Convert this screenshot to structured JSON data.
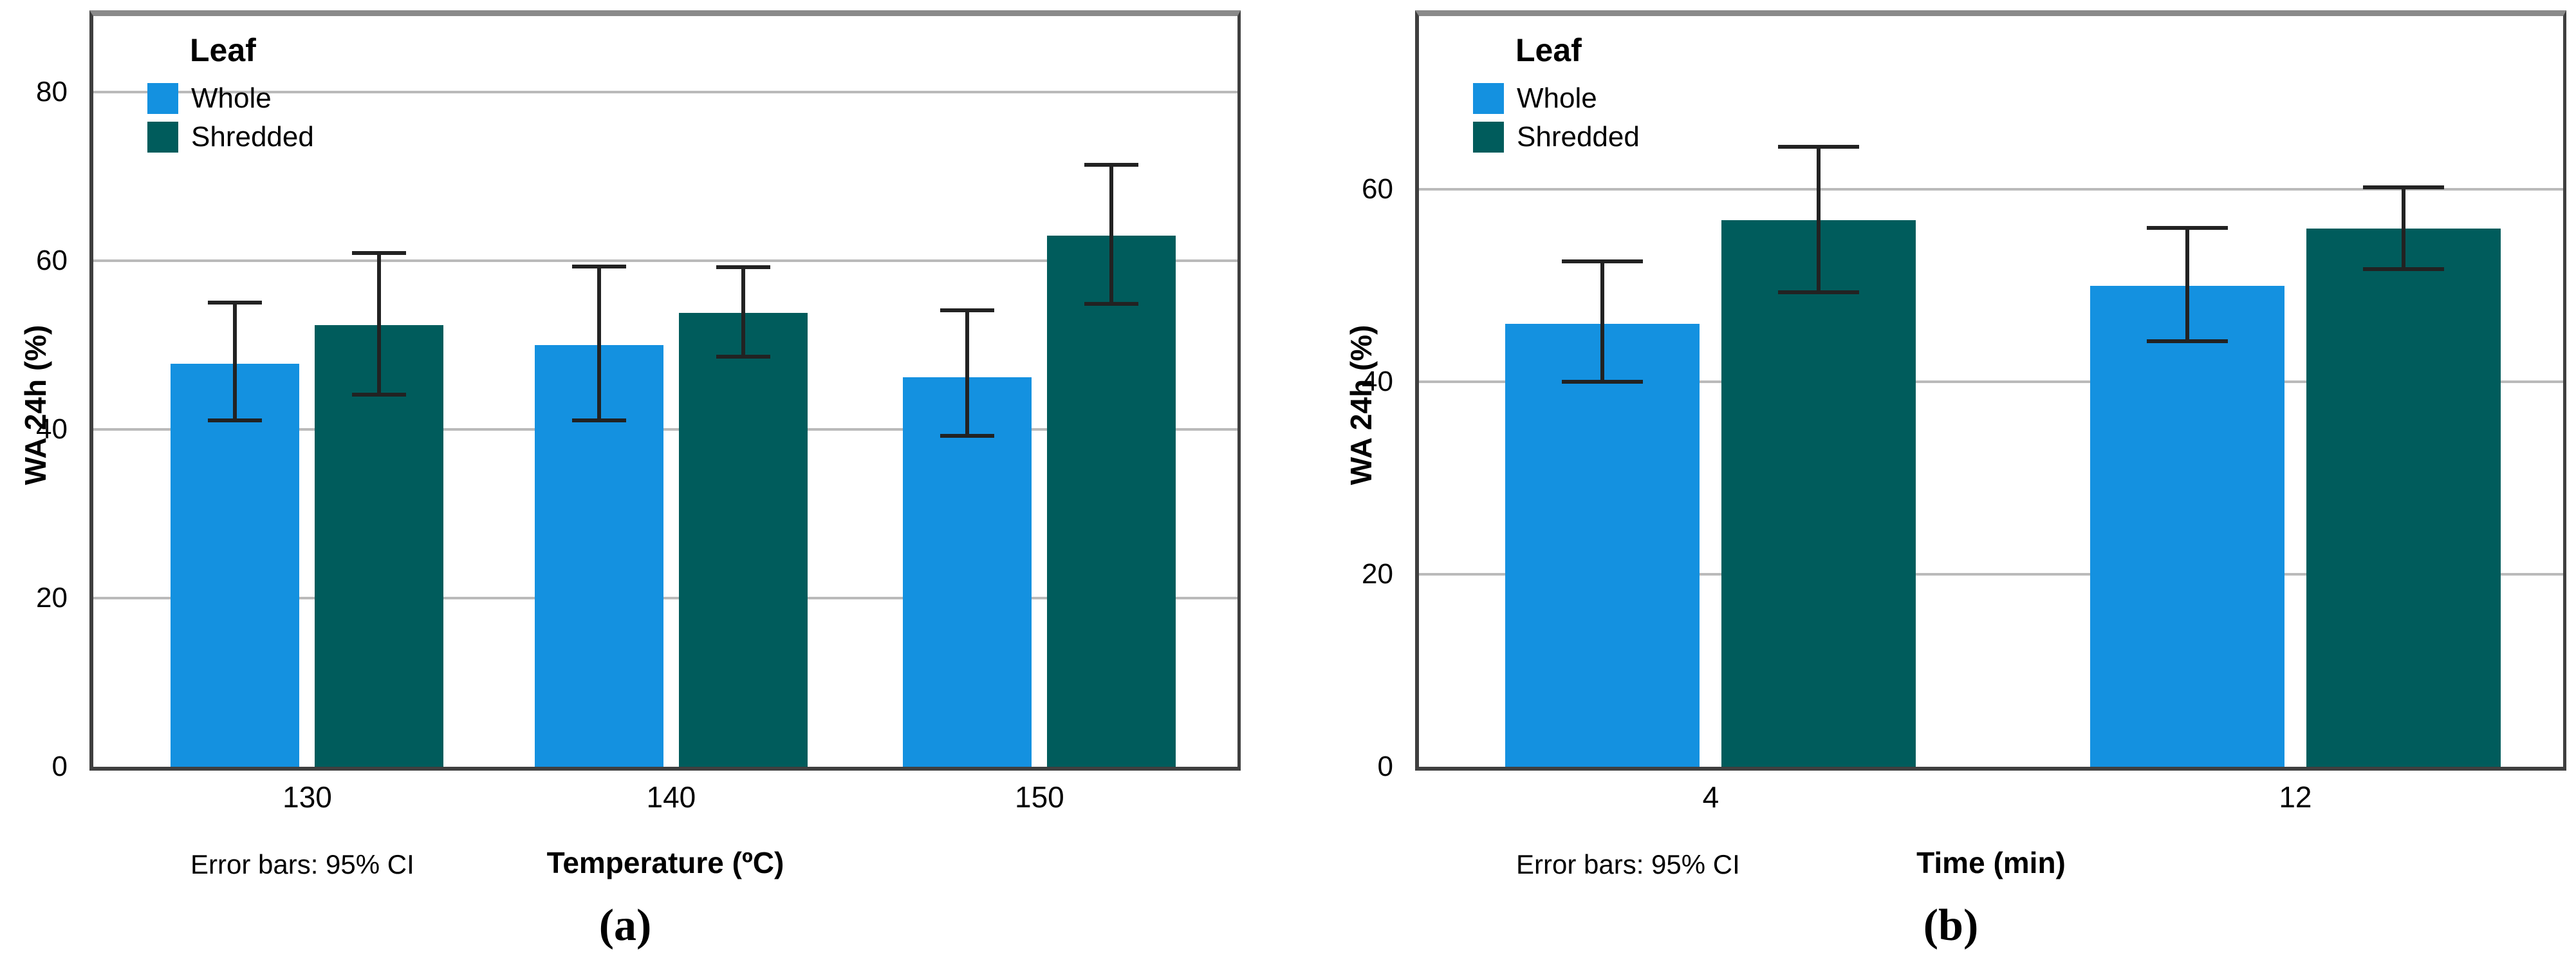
{
  "palette": {
    "whole": "#1491E0",
    "shredded": "#005C5C",
    "grid": "#BABABA",
    "axis": "#3F3F3F",
    "frame_top": "#8A8A8A",
    "error": "#222222",
    "background": "#FFFFFF",
    "text": "#000000"
  },
  "chart_data": [
    {
      "type": "bar",
      "caption": "(a)",
      "legend_title": "Leaf",
      "legend_position": "top-left-inside",
      "grid": "horizontal",
      "categories": [
        "130",
        "140",
        "150"
      ],
      "series": [
        {
          "name": "Whole",
          "color": "#1491E0",
          "values": [
            47.8,
            50.0,
            46.2
          ],
          "ci_low": [
            41.1,
            41.1,
            39.2
          ],
          "ci_high": [
            55.0,
            59.3,
            54.1
          ]
        },
        {
          "name": "Shredded",
          "color": "#005C5C",
          "values": [
            52.4,
            53.8,
            63.0
          ],
          "ci_low": [
            44.1,
            48.6,
            54.9
          ],
          "ci_high": [
            60.9,
            59.2,
            71.4
          ]
        }
      ],
      "xlabel": "Temperature (ºC)",
      "ylabel": "WA 24h (%)",
      "yticks": [
        0,
        20,
        40,
        60,
        80
      ],
      "ylim": [
        0,
        89
      ],
      "note": "Error bars: 95% CI"
    },
    {
      "type": "bar",
      "caption": "(b)",
      "legend_title": "Leaf",
      "legend_position": "top-left-inside",
      "grid": "horizontal",
      "categories": [
        "4",
        "12"
      ],
      "series": [
        {
          "name": "Whole",
          "color": "#1491E0",
          "values": [
            46.0,
            50.0
          ],
          "ci_low": [
            40.0,
            44.2
          ],
          "ci_high": [
            52.5,
            56.0
          ]
        },
        {
          "name": "Shredded",
          "color": "#005C5C",
          "values": [
            56.8,
            55.9
          ],
          "ci_low": [
            49.3,
            51.7
          ],
          "ci_high": [
            64.4,
            60.2
          ]
        }
      ],
      "xlabel": "Time (min)",
      "ylabel": "WA 24h (%)",
      "yticks": [
        0,
        20,
        40,
        60
      ],
      "ylim": [
        0,
        78
      ],
      "note": "Error bars: 95% CI"
    }
  ]
}
